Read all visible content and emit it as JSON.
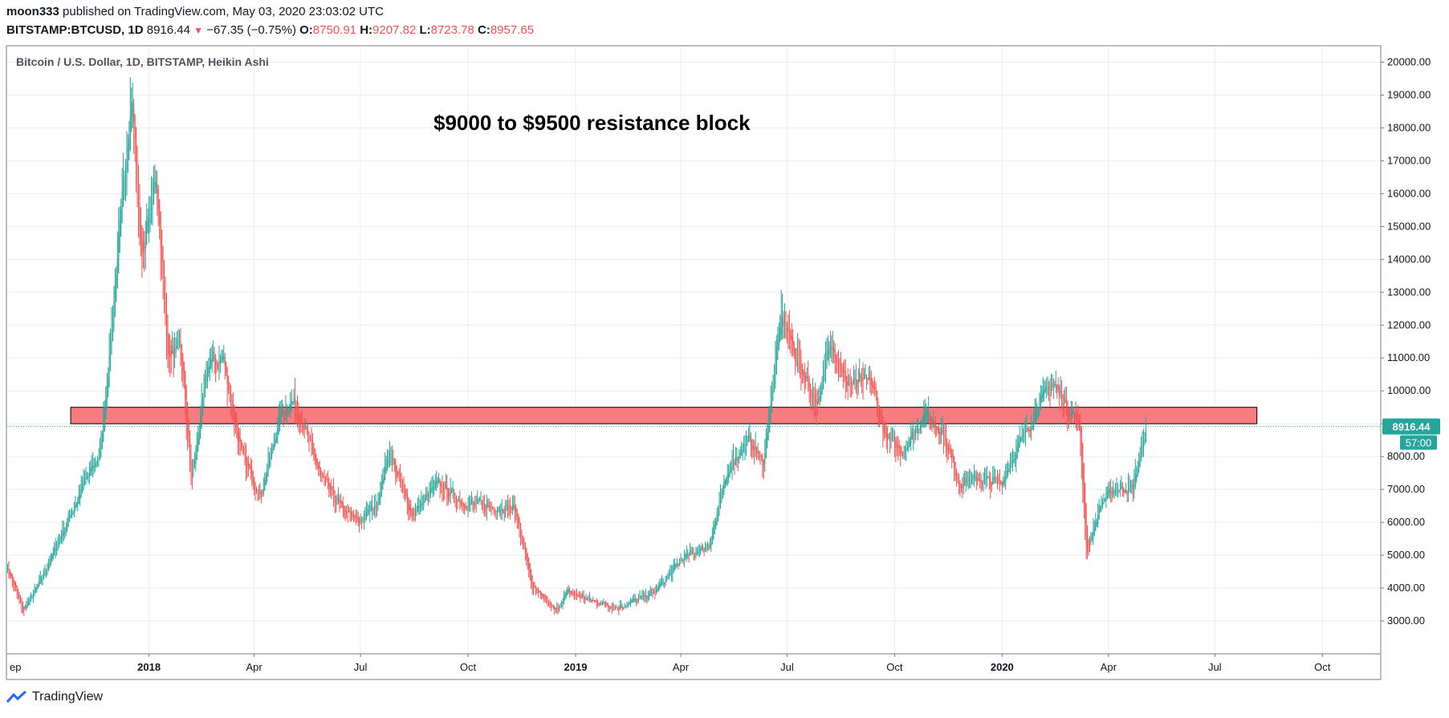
{
  "header": {
    "publisher": "moon333",
    "published_text": "published on TradingView.com, May 03, 2020 23:03:02 UTC",
    "symbol": "BITSTAMP:BTCUSD, 1D",
    "last": "8916.44",
    "change_arrow": "▼",
    "change": "−67.35 (−0.75%)",
    "o_label": "O:",
    "o_value": "8750.91",
    "h_label": "H:",
    "h_value": "9207.82",
    "l_label": "L:",
    "l_value": "8723.78",
    "c_label": "C:",
    "c_value": "8957.65"
  },
  "footer": {
    "brand": "TradingView"
  },
  "colors": {
    "up": "#26a69a",
    "down": "#ef5350",
    "zone_fill": "#f77c80",
    "price_tag": "#26a69a",
    "grid": "#e9eef3"
  },
  "chart_data": {
    "type": "candlestick",
    "style": "Heikin Ashi",
    "title": "Bitcoin / U.S. Dollar, 1D, BITSTAMP, Heikin Ashi",
    "annotation": "$9000 to $9500 resistance block",
    "resistance_zone": {
      "low": 9000,
      "high": 9500,
      "start": "2017-10-26",
      "end": "2020-08-06"
    },
    "last_price": "8916.44",
    "countdown": "57:00",
    "ylim": [
      2000,
      20500
    ],
    "y_ticks": [
      "20000.00",
      "19000.00",
      "18000.00",
      "17000.00",
      "16000.00",
      "15000.00",
      "14000.00",
      "13000.00",
      "12000.00",
      "11000.00",
      "10000.00",
      "9000.00",
      "8000.00",
      "7000.00",
      "6000.00",
      "5000.00",
      "4000.00",
      "3000.00"
    ],
    "x_range": [
      "2017-09-01",
      "2020-11-20"
    ],
    "x_ticks": [
      {
        "label": "ep",
        "date": "2017-09-01",
        "bold": false
      },
      {
        "label": "2018",
        "date": "2018-01-01",
        "bold": true
      },
      {
        "label": "Apr",
        "date": "2018-04-01",
        "bold": false
      },
      {
        "label": "Jul",
        "date": "2018-07-01",
        "bold": false
      },
      {
        "label": "Oct",
        "date": "2018-10-01",
        "bold": false
      },
      {
        "label": "2019",
        "date": "2019-01-01",
        "bold": true
      },
      {
        "label": "Apr",
        "date": "2019-04-01",
        "bold": false
      },
      {
        "label": "Jul",
        "date": "2019-07-01",
        "bold": false
      },
      {
        "label": "Oct",
        "date": "2019-10-01",
        "bold": false
      },
      {
        "label": "2020",
        "date": "2020-01-01",
        "bold": true
      },
      {
        "label": "Apr",
        "date": "2020-04-01",
        "bold": false
      },
      {
        "label": "Jul",
        "date": "2020-07-01",
        "bold": false
      },
      {
        "label": "Oct",
        "date": "2020-10-01",
        "bold": false
      }
    ],
    "price_path": [
      [
        "2017-09-01",
        4700
      ],
      [
        "2017-09-15",
        3300
      ],
      [
        "2017-10-01",
        4300
      ],
      [
        "2017-10-20",
        5800
      ],
      [
        "2017-11-08",
        7300
      ],
      [
        "2017-11-20",
        8100
      ],
      [
        "2017-12-07",
        15000
      ],
      [
        "2017-12-17",
        19200
      ],
      [
        "2017-12-25",
        14000
      ],
      [
        "2018-01-07",
        16500
      ],
      [
        "2018-01-17",
        11000
      ],
      [
        "2018-01-28",
        11300
      ],
      [
        "2018-02-06",
        7200
      ],
      [
        "2018-02-20",
        10800
      ],
      [
        "2018-03-05",
        11000
      ],
      [
        "2018-03-20",
        8200
      ],
      [
        "2018-04-06",
        6800
      ],
      [
        "2018-04-24",
        9400
      ],
      [
        "2018-05-05",
        9700
      ],
      [
        "2018-05-28",
        7400
      ],
      [
        "2018-06-15",
        6400
      ],
      [
        "2018-06-29",
        6000
      ],
      [
        "2018-07-15",
        6600
      ],
      [
        "2018-07-25",
        8200
      ],
      [
        "2018-08-14",
        6200
      ],
      [
        "2018-09-05",
        7200
      ],
      [
        "2018-09-25",
        6600
      ],
      [
        "2018-10-15",
        6500
      ],
      [
        "2018-11-10",
        6400
      ],
      [
        "2018-11-25",
        4000
      ],
      [
        "2018-12-15",
        3300
      ],
      [
        "2018-12-25",
        3900
      ],
      [
        "2019-01-15",
        3600
      ],
      [
        "2019-02-07",
        3400
      ],
      [
        "2019-03-10",
        3900
      ],
      [
        "2019-04-02",
        4900
      ],
      [
        "2019-04-25",
        5300
      ],
      [
        "2019-05-13",
        7800
      ],
      [
        "2019-05-30",
        8500
      ],
      [
        "2019-06-10",
        7800
      ],
      [
        "2019-06-26",
        12300
      ],
      [
        "2019-07-15",
        10500
      ],
      [
        "2019-07-28",
        9500
      ],
      [
        "2019-08-06",
        11700
      ],
      [
        "2019-08-20",
        10200
      ],
      [
        "2019-09-10",
        10300
      ],
      [
        "2019-09-24",
        8500
      ],
      [
        "2019-10-08",
        8200
      ],
      [
        "2019-10-26",
        9300
      ],
      [
        "2019-11-10",
        8800
      ],
      [
        "2019-11-25",
        7200
      ],
      [
        "2019-12-10",
        7300
      ],
      [
        "2019-12-31",
        7200
      ],
      [
        "2020-01-20",
        8700
      ],
      [
        "2020-02-12",
        10300
      ],
      [
        "2020-02-25",
        9500
      ],
      [
        "2020-03-07",
        9000
      ],
      [
        "2020-03-13",
        5000
      ],
      [
        "2020-03-25",
        6600
      ],
      [
        "2020-04-06",
        7000
      ],
      [
        "2020-04-22",
        7100
      ],
      [
        "2020-05-03",
        8917
      ]
    ],
    "random_seed": 7,
    "date_axis_note": ""
  }
}
